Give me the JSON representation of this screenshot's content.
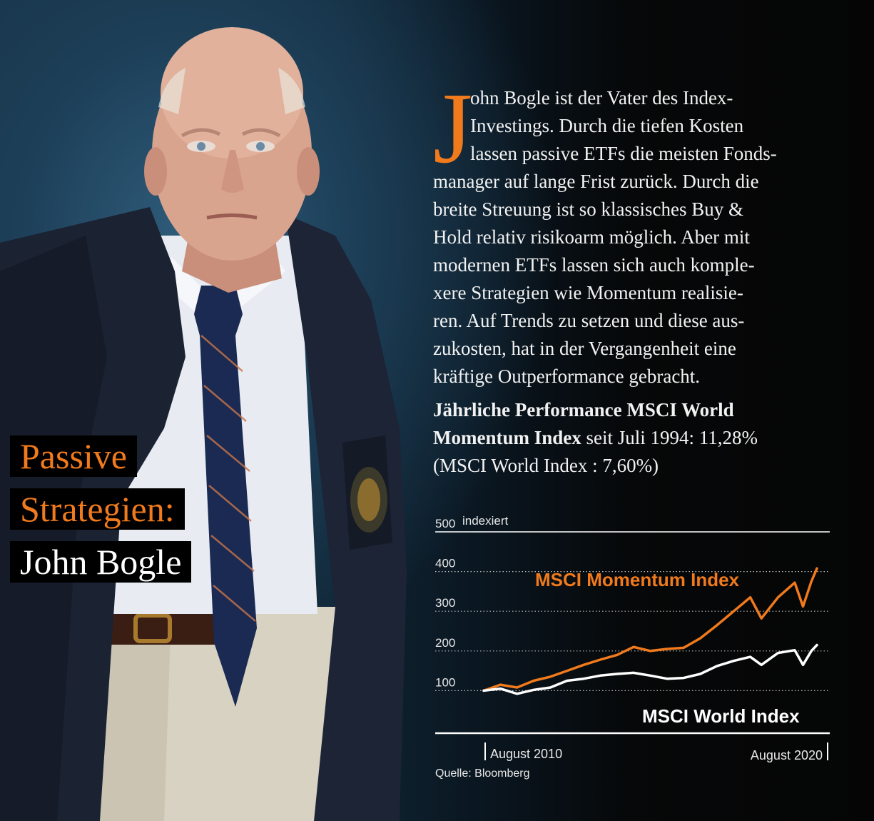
{
  "headline": {
    "line1": "Passive",
    "line2": "Strategien:",
    "line3": "John Bogle"
  },
  "article": {
    "dropcap": "J",
    "lines": [
      "ohn Bogle ist der Vater des Index-",
      "Investings. Durch die tiefen Kosten",
      "lassen passive ETFs die meisten Fonds-",
      "manager auf lange Frist zurück. Durch die",
      "breite Streuung ist so klassisches Buy &",
      "Hold relativ risikoarm möglich. Aber mit",
      "modernen ETFs lassen sich auch komple-",
      "xere Strategien wie Momentum realisie-",
      "ren. Auf Trends zu setzen und diese aus-",
      "zukosten, hat in der Vergangenheit eine",
      "kräftige Outperformance gebracht."
    ]
  },
  "stat": {
    "bold1": "Jährliche Performance MSCI World",
    "bold2": "Momentum Index",
    "rest2": " seit Juli 1994: 11,28%",
    "line3": "(MSCI World Index : 7,60%)"
  },
  "colors": {
    "accent": "#f07a1c",
    "text": "#f2f2f2",
    "background": "#070707"
  },
  "chart_data": {
    "type": "line",
    "ylabel": "indexiert",
    "ylim": [
      0,
      500
    ],
    "yticks": [
      100,
      200,
      300,
      400,
      500
    ],
    "xtick_labels": [
      "August 2010",
      "August 2020"
    ],
    "x": [
      "2010-08",
      "2011-02",
      "2011-08",
      "2012-02",
      "2012-08",
      "2013-02",
      "2013-08",
      "2014-02",
      "2014-08",
      "2015-02",
      "2015-08",
      "2016-02",
      "2016-08",
      "2017-02",
      "2017-08",
      "2018-02",
      "2018-08",
      "2018-12",
      "2019-06",
      "2019-12",
      "2020-03",
      "2020-06",
      "2020-08"
    ],
    "series": [
      {
        "name": "MSCI Momentum Index",
        "color": "#f07a1c",
        "values": [
          100,
          115,
          108,
          125,
          135,
          150,
          165,
          178,
          190,
          210,
          200,
          205,
          208,
          232,
          265,
          300,
          335,
          282,
          335,
          372,
          312,
          375,
          408
        ]
      },
      {
        "name": "MSCI World Index",
        "color": "#ffffff",
        "values": [
          100,
          105,
          92,
          102,
          108,
          125,
          130,
          138,
          142,
          145,
          138,
          130,
          132,
          142,
          162,
          175,
          185,
          165,
          195,
          202,
          165,
          200,
          215
        ]
      }
    ],
    "grid": "dotted horizontal",
    "source": "Quelle: Bloomberg"
  }
}
